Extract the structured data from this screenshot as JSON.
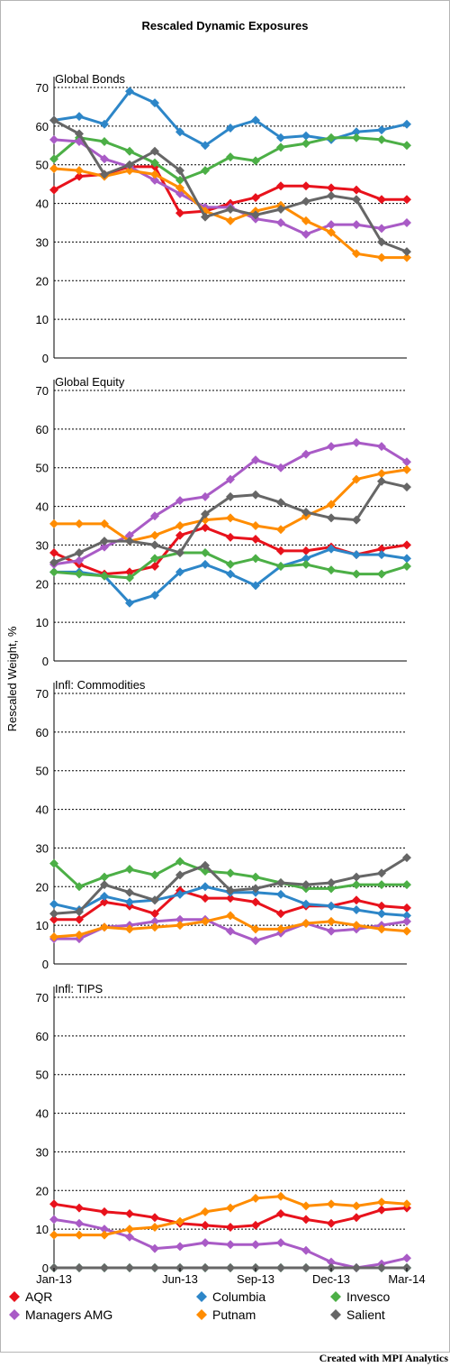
{
  "title": "Rescaled Dynamic Exposures",
  "ylabel": "Rescaled Weight, %",
  "credit": "Created with MPI Analytics",
  "x_labels": [
    "Jan-13",
    "Jun-13",
    "Sep-13",
    "Dec-13",
    "Mar-14"
  ],
  "x_label_index": [
    0,
    5,
    8,
    11,
    14
  ],
  "legend_placement": "bottom",
  "legend": [
    {
      "name": "AQR",
      "color": "#e8121c"
    },
    {
      "name": "Columbia",
      "color": "#2d86c8"
    },
    {
      "name": "Invesco",
      "color": "#4caf46"
    },
    {
      "name": "Managers AMG",
      "color": "#a95bc6"
    },
    {
      "name": "Putnam",
      "color": "#ff8c00"
    },
    {
      "name": "Salient",
      "color": "#666666"
    }
  ],
  "chart_data": [
    {
      "type": "line",
      "title": "Global Bonds",
      "ylim": [
        0,
        70
      ],
      "yticks": [
        0,
        10,
        20,
        30,
        40,
        50,
        60,
        70
      ],
      "grid": true,
      "categories": [
        "Jan-13",
        "Feb-13",
        "Mar-13",
        "Apr-13",
        "May-13",
        "Jun-13",
        "Jul-13",
        "Aug-13",
        "Sep-13",
        "Oct-13",
        "Nov-13",
        "Dec-13",
        "Jan-14",
        "Feb-14",
        "Mar-14"
      ],
      "series": [
        {
          "name": "AQR",
          "values": [
            43.5,
            47,
            47.5,
            49.5,
            49.5,
            37.5,
            38,
            40,
            41.5,
            44.5,
            44.5,
            44,
            43.5,
            41,
            41
          ]
        },
        {
          "name": "Columbia",
          "values": [
            61.5,
            62.5,
            60.5,
            69,
            66,
            58.5,
            55,
            59.5,
            61.5,
            57,
            57.5,
            56.5,
            58.5,
            59,
            60.5
          ]
        },
        {
          "name": "Invesco",
          "values": [
            51.5,
            57,
            56,
            53.5,
            50.5,
            46,
            48.5,
            52,
            51,
            54.5,
            55.5,
            57,
            57,
            56.5,
            55
          ]
        },
        {
          "name": "Managers AMG",
          "values": [
            56.5,
            56,
            51.5,
            49.5,
            46,
            42.5,
            39,
            39,
            36,
            35,
            32,
            34.5,
            34.5,
            33.5,
            35
          ]
        },
        {
          "name": "Putnam",
          "values": [
            49,
            48.5,
            47,
            48.5,
            47.5,
            44,
            38,
            35.5,
            38,
            39.5,
            35.5,
            32.5,
            27,
            26,
            26
          ]
        },
        {
          "name": "Salient",
          "values": [
            61.5,
            58,
            47.5,
            50,
            53.5,
            48.5,
            36.5,
            38.5,
            37,
            38.5,
            40.5,
            42,
            41,
            30,
            27.5
          ]
        }
      ]
    },
    {
      "type": "line",
      "title": "Global Equity",
      "ylim": [
        0,
        70
      ],
      "yticks": [
        0,
        10,
        20,
        30,
        40,
        50,
        60,
        70
      ],
      "grid": true,
      "categories": [
        "Jan-13",
        "Feb-13",
        "Mar-13",
        "Apr-13",
        "May-13",
        "Jun-13",
        "Jul-13",
        "Aug-13",
        "Sep-13",
        "Oct-13",
        "Nov-13",
        "Dec-13",
        "Jan-14",
        "Feb-14",
        "Mar-14"
      ],
      "series": [
        {
          "name": "AQR",
          "values": [
            28,
            25,
            22.5,
            23,
            24.5,
            32.5,
            34.5,
            32,
            31.5,
            28.5,
            28.5,
            29.5,
            27.5,
            29,
            30
          ]
        },
        {
          "name": "Columbia",
          "values": [
            23,
            23,
            22,
            15,
            17,
            23,
            25,
            22.5,
            19.5,
            24.5,
            26.5,
            29,
            27.5,
            27.5,
            26.5
          ]
        },
        {
          "name": "Invesco",
          "values": [
            23,
            22.5,
            22,
            21.5,
            26.5,
            28,
            28,
            25,
            26.5,
            24.5,
            25,
            23.5,
            22.5,
            22.5,
            24.5
          ]
        },
        {
          "name": "Managers AMG",
          "values": [
            25,
            26,
            29.5,
            32.5,
            37.5,
            41.5,
            42.5,
            47,
            52,
            50,
            53.5,
            55.5,
            56.5,
            55.5,
            51.5
          ]
        },
        {
          "name": "Putnam",
          "values": [
            35.5,
            35.5,
            35.5,
            31,
            32.5,
            35,
            36.5,
            37,
            35,
            34,
            37.5,
            40.5,
            47,
            48.5,
            49.5
          ]
        },
        {
          "name": "Salient",
          "values": [
            25.5,
            28,
            31,
            31,
            30,
            28,
            38,
            42.5,
            43,
            41,
            38.5,
            37,
            36.5,
            46.5,
            45
          ]
        }
      ]
    },
    {
      "type": "line",
      "title": "Infl: Commodities",
      "ylim": [
        0,
        70
      ],
      "yticks": [
        0,
        10,
        20,
        30,
        40,
        50,
        60,
        70
      ],
      "grid": true,
      "categories": [
        "Jan-13",
        "Feb-13",
        "Mar-13",
        "Apr-13",
        "May-13",
        "Jun-13",
        "Jul-13",
        "Aug-13",
        "Sep-13",
        "Oct-13",
        "Nov-13",
        "Dec-13",
        "Jan-14",
        "Feb-14",
        "Mar-14"
      ],
      "series": [
        {
          "name": "AQR",
          "values": [
            11.5,
            11.5,
            16,
            15,
            13,
            19,
            17,
            17,
            16,
            13,
            15,
            15,
            16.5,
            15,
            14.5
          ]
        },
        {
          "name": "Columbia",
          "values": [
            15.5,
            14,
            17.5,
            16,
            16.5,
            18,
            20,
            18.5,
            18.5,
            18,
            15.5,
            15,
            14,
            13,
            12.5
          ]
        },
        {
          "name": "Invesco",
          "values": [
            26,
            20,
            22.5,
            24.5,
            23,
            26.5,
            24,
            23.5,
            22.5,
            21,
            19.5,
            19.5,
            20.5,
            20.5,
            20.5
          ]
        },
        {
          "name": "Managers AMG",
          "values": [
            6.5,
            6.5,
            9.5,
            10,
            11,
            11.5,
            11.5,
            8.5,
            6,
            8,
            10.5,
            8.5,
            9,
            10,
            11
          ]
        },
        {
          "name": "Putnam",
          "values": [
            7,
            7.5,
            9.5,
            9,
            9.5,
            10,
            11,
            12.5,
            9,
            9,
            10.5,
            11,
            10,
            9,
            8.5
          ]
        },
        {
          "name": "Salient",
          "values": [
            13,
            13.5,
            20.5,
            18.5,
            16.5,
            23,
            25.5,
            19,
            19.5,
            21,
            20.5,
            21,
            22.5,
            23.5,
            27.5
          ]
        }
      ]
    },
    {
      "type": "line",
      "title": "Infl: TIPS",
      "ylim": [
        0,
        70
      ],
      "yticks": [
        0,
        10,
        20,
        30,
        40,
        50,
        60,
        70
      ],
      "grid": true,
      "categories": [
        "Jan-13",
        "Feb-13",
        "Mar-13",
        "Apr-13",
        "May-13",
        "Jun-13",
        "Jul-13",
        "Aug-13",
        "Sep-13",
        "Oct-13",
        "Nov-13",
        "Dec-13",
        "Jan-14",
        "Feb-14",
        "Mar-14"
      ],
      "series": [
        {
          "name": "AQR",
          "values": [
            16.5,
            15.5,
            14.5,
            14,
            13,
            11.5,
            11,
            10.5,
            11,
            14,
            12.5,
            11.5,
            13,
            15,
            15.5
          ]
        },
        {
          "name": "Columbia",
          "values": [
            0,
            0,
            0,
            0,
            0,
            0,
            0,
            0,
            0,
            0,
            0,
            0,
            0,
            0,
            0
          ]
        },
        {
          "name": "Invesco",
          "values": [
            0,
            0,
            0,
            0,
            0,
            0,
            0,
            0,
            0,
            0,
            0,
            0,
            0,
            0,
            0
          ]
        },
        {
          "name": "Managers AMG",
          "values": [
            12.5,
            11.5,
            10,
            8,
            5,
            5.5,
            6.5,
            6,
            6,
            6.5,
            4.5,
            1.5,
            0,
            1,
            2.5
          ]
        },
        {
          "name": "Putnam",
          "values": [
            8.5,
            8.5,
            8.5,
            10,
            10.5,
            12,
            14.5,
            15.5,
            18,
            18.5,
            16,
            16.5,
            16,
            17,
            16.5
          ]
        },
        {
          "name": "Salient",
          "values": [
            0,
            0,
            0,
            0,
            0,
            0,
            0,
            0,
            0,
            0,
            0,
            0,
            0,
            0,
            0
          ]
        }
      ]
    }
  ]
}
